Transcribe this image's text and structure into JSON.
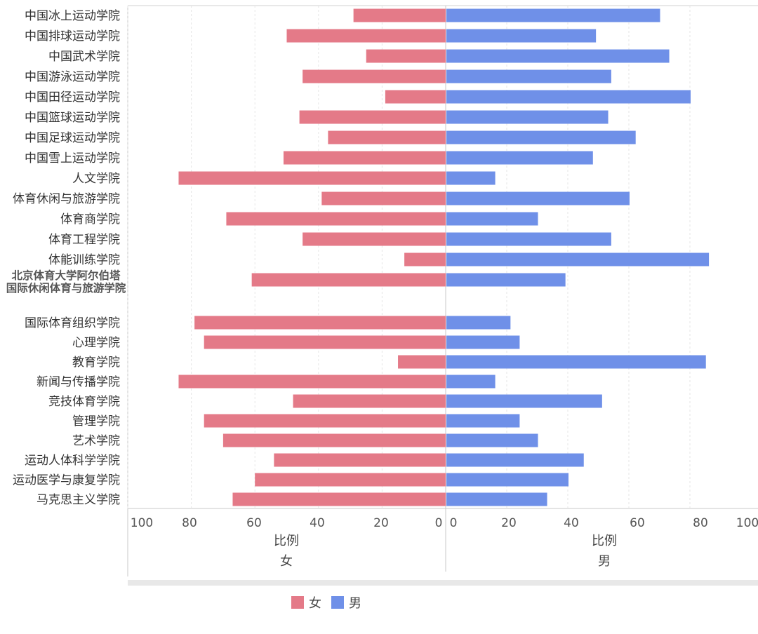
{
  "chart_data": {
    "type": "bar",
    "orientation": "horizontal-diverging",
    "categories": [
      "中国冰上运动学院",
      "中国排球运动学院",
      "中国武术学院",
      "中国游泳运动学院",
      "中国田径运动学院",
      "中国篮球运动学院",
      "中国足球运动学院",
      "中国雪上运动学院",
      "人文学院",
      "体育休闲与旅游学院",
      "体育商学院",
      "体育工程学院",
      "体能训练学院",
      "北京体育大学阿尔伯塔\n国际休闲体育与旅游学院",
      "国际体育组织学院",
      "心理学院",
      "教育学院",
      "新闻与传播学院",
      "竞技体育学院",
      "管理学院",
      "艺术学院",
      "运动人体科学学院",
      "运动医学与康复学院",
      "马克思主义学院"
    ],
    "series": [
      {
        "name": "女",
        "color": "#e47a88",
        "values": [
          29,
          50,
          25,
          45,
          19,
          46,
          37,
          51,
          84,
          39,
          69,
          45,
          13,
          61,
          79,
          76,
          15,
          84,
          48,
          76,
          70,
          54,
          60,
          67
        ]
      },
      {
        "name": "男",
        "color": "#6f90e8",
        "values": [
          70,
          49,
          73,
          54,
          80,
          53,
          62,
          48,
          16,
          60,
          30,
          54,
          86,
          39,
          21,
          24,
          85,
          16,
          51,
          24,
          30,
          45,
          40,
          33
        ]
      }
    ],
    "panels": [
      {
        "xlabel": "比例",
        "sublabel": "女",
        "ticks": [
          "100",
          "80",
          "60",
          "40",
          "20",
          "0"
        ]
      },
      {
        "xlabel": "比例",
        "sublabel": "男",
        "ticks": [
          "0",
          "20",
          "40",
          "60",
          "80",
          "100"
        ]
      }
    ],
    "xlim": [
      0,
      100
    ],
    "grid": true,
    "legend": {
      "position": "bottom",
      "items": [
        "女",
        "男"
      ]
    }
  }
}
